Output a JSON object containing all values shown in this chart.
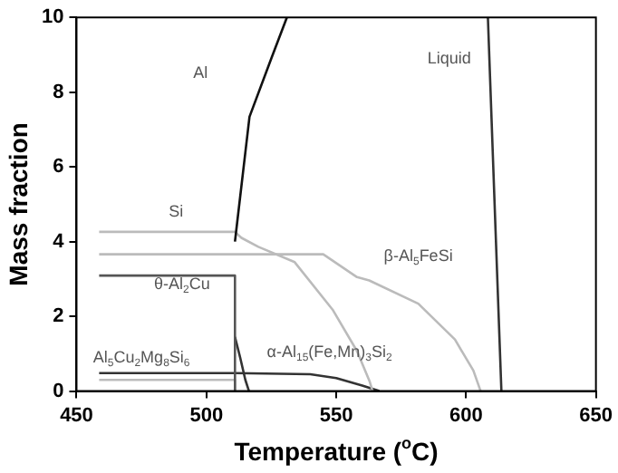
{
  "chart_data": {
    "type": "line",
    "xlabel": "Temperature ($^{o}$C)",
    "ylabel": "Mass fraction",
    "xlim": [
      450,
      650
    ],
    "xticks": [
      450,
      500,
      550,
      600,
      650
    ],
    "ylim": [
      0,
      10
    ],
    "yticks": [
      0,
      2,
      4,
      6,
      8,
      10
    ],
    "grid": false,
    "legend": false,
    "marker": "none",
    "line_style": "solid",
    "series": [
      {
        "color": "#111111",
        "x": [
          511,
          511.5,
          516.6,
          525,
          531
        ],
        "values": [
          4.0,
          4.3,
          7.34,
          8.9,
          10
        ]
      },
      {
        "color": "#333333",
        "x": [
          608.4,
          611.4,
          613.6
        ],
        "values": [
          10,
          4.2,
          0
        ]
      },
      {
        "color": "#bbbbbb",
        "x": [
          458.7,
          511,
          513.5,
          520,
          534,
          548.6,
          558,
          562.8,
          564
        ],
        "values": [
          4.26,
          4.26,
          4.1,
          3.86,
          3.45,
          2.18,
          1.07,
          0.27,
          0
        ]
      },
      {
        "color": "#bbbbbb",
        "x": [
          458.7,
          545,
          558,
          562.7,
          581.6,
          595.7,
          602.8,
          605.6
        ],
        "values": [
          3.66,
          3.66,
          3.05,
          2.96,
          2.34,
          1.38,
          0.55,
          0
        ]
      },
      {
        "color": "#555555",
        "x": [
          458.7,
          511,
          511
        ],
        "values": [
          3.09,
          3.09,
          0
        ]
      },
      {
        "color": "#bbbbbb",
        "x": [
          458.7,
          511,
          511
        ],
        "values": [
          0.3,
          0.3,
          0
        ]
      },
      {
        "color": "#333333",
        "x": [
          458.7,
          511,
          540,
          550,
          560,
          566.6
        ],
        "values": [
          0.48,
          0.48,
          0.45,
          0.35,
          0.15,
          0
        ]
      },
      {
        "color": "#333333",
        "x": [
          511,
          513,
          515,
          516.4
        ],
        "values": [
          1.45,
          0.9,
          0.3,
          0
        ]
      }
    ],
    "annotations": [
      "Al",
      "Liquid",
      "Si",
      "β-Al$_{5}$FeSi",
      "θ-Al$_{2}$Cu",
      "Al$_{5}$Cu$_{2}$Mg$_{8}$Si$_{6}$",
      "α-Al$_{15}$(Fe,Mn)$_{3}$Si$_{2}$"
    ]
  }
}
